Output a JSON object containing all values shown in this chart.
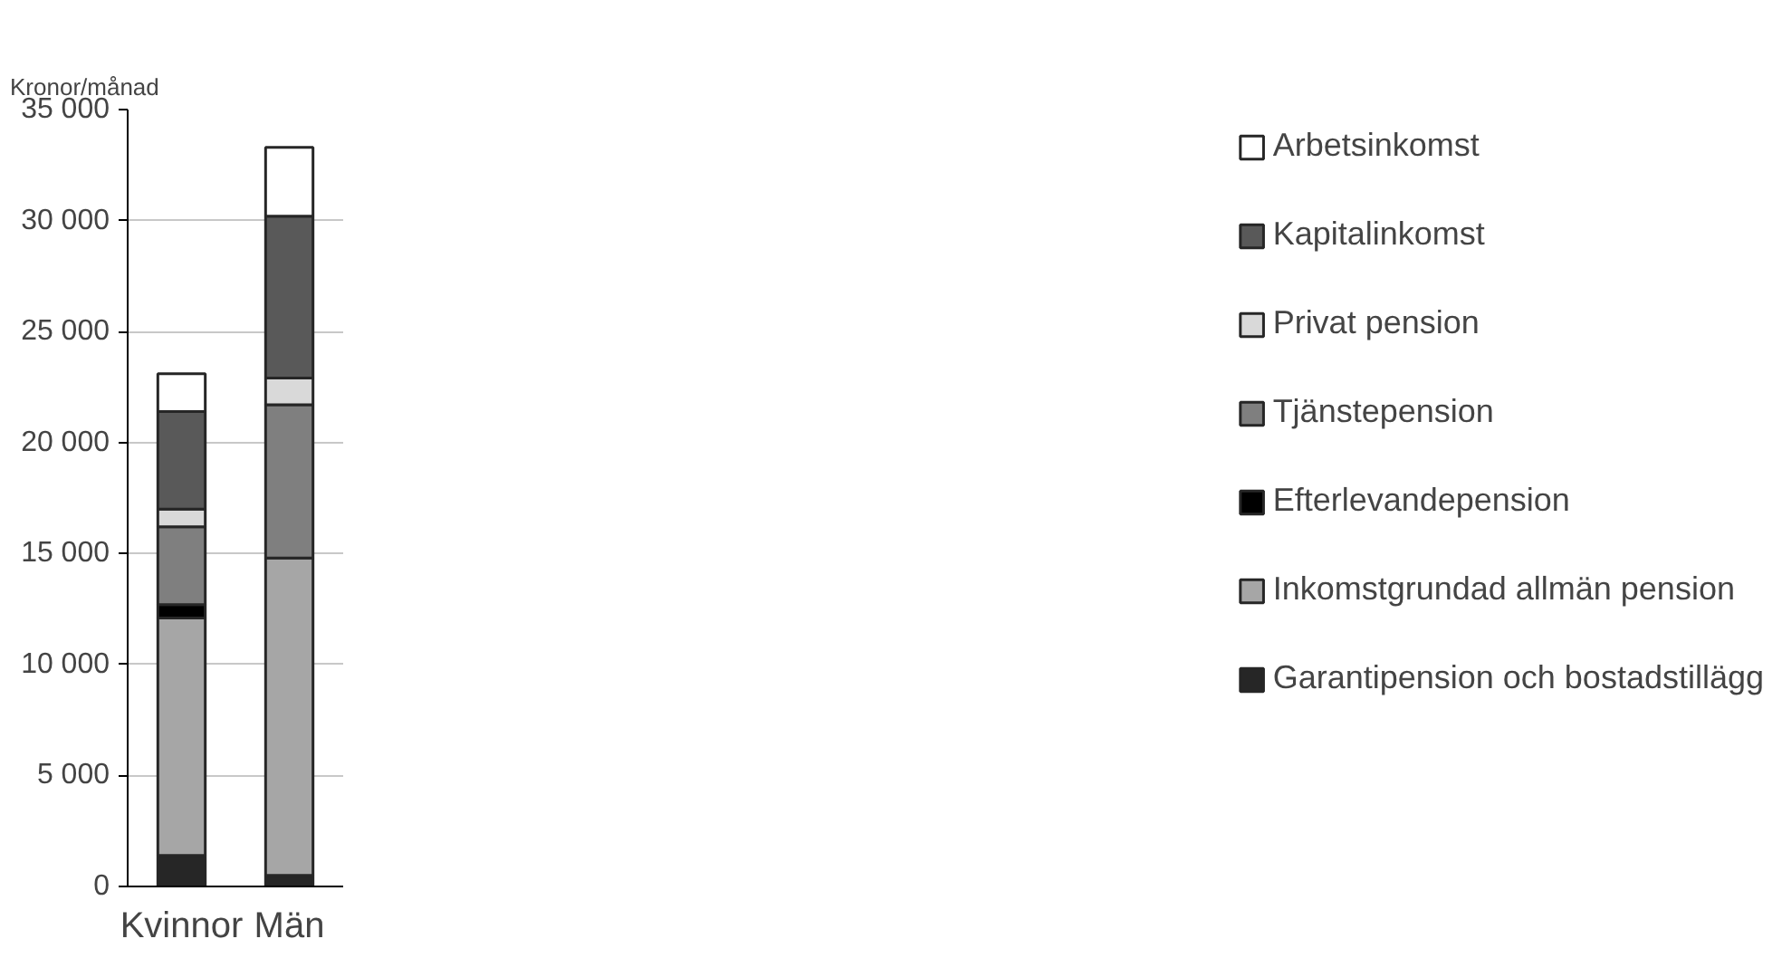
{
  "chart_data": {
    "type": "bar",
    "stacked": true,
    "ylabel": "Kronor/månad",
    "categories": [
      "Kvinnor",
      "Män"
    ],
    "series": [
      {
        "name": "Garantipension och bostadstillägg",
        "color": "#262626",
        "values": [
          1400,
          500
        ]
      },
      {
        "name": "Inkomstgrundad allmän pension",
        "color": "#a6a6a6",
        "values": [
          10700,
          14300
        ]
      },
      {
        "name": "Efterlevandepension",
        "color": "#000000",
        "values": [
          600,
          0
        ]
      },
      {
        "name": "Tjänstepension",
        "color": "#7f7f7f",
        "values": [
          3500,
          6900
        ]
      },
      {
        "name": "Privat pension",
        "color": "#d9d9d9",
        "values": [
          800,
          1200
        ]
      },
      {
        "name": "Kapitalinkomst",
        "color": "#595959",
        "values": [
          4400,
          7300
        ]
      },
      {
        "name": "Arbetsinkomst",
        "color": "#ffffff",
        "values": [
          1700,
          3100
        ]
      }
    ],
    "ylim": [
      0,
      35000
    ],
    "yticks": [
      {
        "value": 0,
        "label": "0"
      },
      {
        "value": 5000,
        "label": "5 000"
      },
      {
        "value": 10000,
        "label": "10 000"
      },
      {
        "value": 15000,
        "label": "15 000"
      },
      {
        "value": 20000,
        "label": "20 000"
      },
      {
        "value": 25000,
        "label": "25 000"
      },
      {
        "value": 30000,
        "label": "30 000"
      },
      {
        "value": 35000,
        "label": "35 000"
      }
    ],
    "grid": "y",
    "legend": "right"
  }
}
